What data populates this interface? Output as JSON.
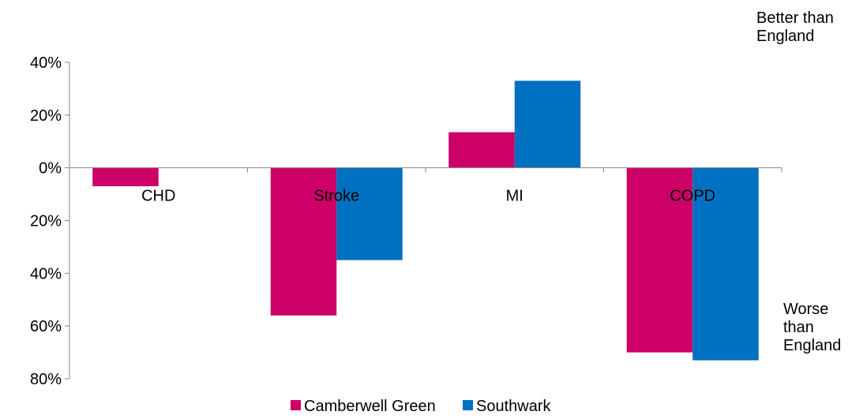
{
  "chart_data": {
    "type": "bar",
    "categories": [
      "CHD",
      "Stroke",
      "MI",
      "COPD"
    ],
    "series": [
      {
        "name": "Camberwell Green",
        "color": "#cc0066",
        "values": [
          -7,
          -56,
          13.5,
          -70
        ]
      },
      {
        "name": "Southwark",
        "color": "#0070c0",
        "values": [
          0,
          -35,
          33,
          -73
        ]
      }
    ],
    "ylim": [
      -80,
      40
    ],
    "yticks": [
      40,
      20,
      0,
      -20,
      -40,
      -60,
      -80
    ],
    "ytick_labels": [
      "40%",
      "20%",
      "0%",
      "20%",
      "40%",
      "60%",
      "80%"
    ],
    "grid": false,
    "legend_position": "bottom",
    "annotations": {
      "better": "Better than\nEngland",
      "worse": "Worse\nthan\nEngland"
    }
  }
}
